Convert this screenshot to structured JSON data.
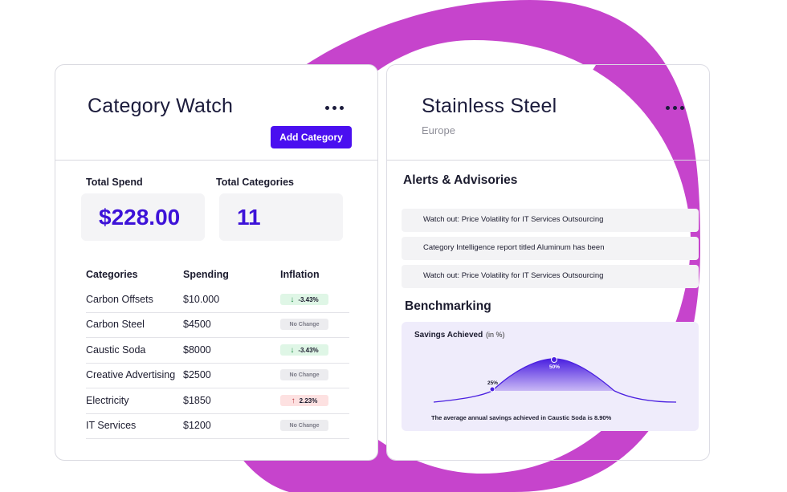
{
  "colors": {
    "accent": "#4a0ff0",
    "ring": "#c644cc",
    "value": "#3d12d8",
    "green": "#1d8a45",
    "red": "#b8333a"
  },
  "left_card": {
    "title": "Category Watch",
    "more_icon": "more-horizontal-icon",
    "add_button": "Add Category",
    "total_spend_label": "Total Spend",
    "total_spend_value": "$228.00",
    "total_categories_label": "Total Categories",
    "total_categories_value": "11",
    "table": {
      "headers": [
        "Categories",
        "Spending",
        "Inflation"
      ],
      "rows": [
        {
          "category": "Carbon Offsets",
          "spending": "$10.000",
          "inflation": "-3.43%",
          "trend": "down"
        },
        {
          "category": "Carbon Steel",
          "spending": "$4500",
          "inflation": "No Change",
          "trend": "none"
        },
        {
          "category": "Caustic Soda",
          "spending": "$8000",
          "inflation": "-3.43%",
          "trend": "down"
        },
        {
          "category": "Creative Advertising",
          "spending": "$2500",
          "inflation": "No Change",
          "trend": "none"
        },
        {
          "category": "Electricity",
          "spending": "$1850",
          "inflation": "2.23%",
          "trend": "up"
        },
        {
          "category": "IT Services",
          "spending": "$1200",
          "inflation": "No Change",
          "trend": "none"
        }
      ]
    }
  },
  "right_card": {
    "title": "Stainless Steel",
    "subtitle": "Europe",
    "more_icon": "more-horizontal-icon",
    "alerts_heading": "Alerts & Advisories",
    "alerts": [
      "Watch out: Price Volatility for IT Services Outsourcing",
      "Category Intelligence report titled Aluminum has been",
      "Watch out: Price Volatility for IT Services Outsourcing"
    ],
    "benchmark_heading": "Benchmarking",
    "benchmark": {
      "title": "Savings Achieved",
      "unit": "(in %)",
      "point_low": "25%",
      "point_high": "50%",
      "caption": "The average annual savings achieved in Caustic Soda is 8.90%"
    }
  }
}
